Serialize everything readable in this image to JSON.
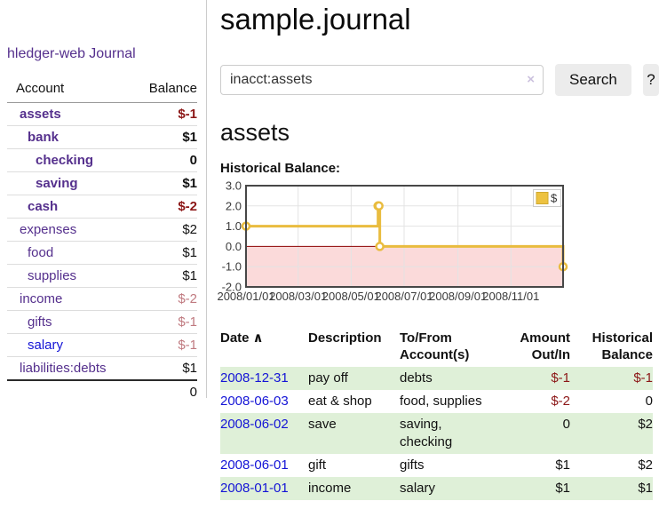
{
  "sidebar": {
    "brand": "hledger-web",
    "nav_journal": "Journal",
    "accounts_table": {
      "account_header": "Account",
      "balance_header": "Balance",
      "rows": [
        {
          "name": "assets",
          "balance": "$-1",
          "indent": 1,
          "bold": true,
          "amount_class": "neg-strong"
        },
        {
          "name": "bank",
          "balance": "$1",
          "indent": 2,
          "bold": true,
          "amount_class": ""
        },
        {
          "name": "checking",
          "balance": "0",
          "indent": 3,
          "bold": true,
          "amount_class": ""
        },
        {
          "name": "saving",
          "balance": "$1",
          "indent": 3,
          "bold": true,
          "amount_class": ""
        },
        {
          "name": "cash",
          "balance": "$-2",
          "indent": 2,
          "bold": true,
          "amount_class": "neg-strong"
        },
        {
          "name": "expenses",
          "balance": "$2",
          "indent": 1,
          "bold": false,
          "amount_class": ""
        },
        {
          "name": "food",
          "balance": "$1",
          "indent": 2,
          "bold": false,
          "amount_class": ""
        },
        {
          "name": "supplies",
          "balance": "$1",
          "indent": 2,
          "bold": false,
          "amount_class": ""
        },
        {
          "name": "income",
          "balance": "$-2",
          "indent": 1,
          "bold": false,
          "amount_class": "neg-soft"
        },
        {
          "name": "gifts",
          "balance": "$-1",
          "indent": 2,
          "bold": false,
          "amount_class": "neg-soft"
        },
        {
          "name": "salary",
          "balance": "$-1",
          "indent": 2,
          "bold": false,
          "amount_class": "neg-soft",
          "link": "blue"
        },
        {
          "name": "liabilities:debts",
          "balance": "$1",
          "indent": 1,
          "bold": false,
          "amount_class": ""
        }
      ],
      "total": "0"
    }
  },
  "header": {
    "title": "sample.journal"
  },
  "search": {
    "value": "inacct:assets",
    "clear_label": "×",
    "button_label": "Search",
    "help_label": "?"
  },
  "account_page": {
    "title": "assets",
    "chart_label": "Historical Balance:"
  },
  "chart_data": {
    "type": "line",
    "title": "Historical Balance",
    "step": true,
    "series": [
      {
        "name": "$",
        "points": [
          {
            "date": "2008-01-01",
            "day": 0,
            "value": 1
          },
          {
            "date": "2008-06-01",
            "day": 152,
            "value": 2
          },
          {
            "date": "2008-06-02",
            "day": 153,
            "value": 2
          },
          {
            "date": "2008-06-03",
            "day": 154,
            "value": 0
          },
          {
            "date": "2008-12-31",
            "day": 365,
            "value": -1
          }
        ]
      }
    ],
    "x_ticks": [
      {
        "label": "2008/01/01",
        "day": 0
      },
      {
        "label": "2008/03/01",
        "day": 60
      },
      {
        "label": "2008/05/01",
        "day": 121
      },
      {
        "label": "2008/07/01",
        "day": 182
      },
      {
        "label": "2008/09/01",
        "day": 244
      },
      {
        "label": "2008/11/01",
        "day": 305
      }
    ],
    "y_ticks": [
      {
        "label": "3.0",
        "value": 3
      },
      {
        "label": "2.0",
        "value": 2
      },
      {
        "label": "1.0",
        "value": 1
      },
      {
        "label": "0.0",
        "value": 0
      },
      {
        "label": "-1.0",
        "value": -1
      },
      {
        "label": "-2.0",
        "value": -2
      }
    ],
    "ylim": [
      -2,
      3
    ],
    "xlim_days": [
      0,
      365
    ],
    "grid": true,
    "legend": {
      "label": "$",
      "position": "top-right"
    },
    "colors": {
      "line": "#e9bc3f",
      "marker_fill": "#ffffff",
      "negative_region": "#fbdada",
      "zero_line": "#8b0000",
      "grid_line": "#e3e3e3",
      "plot_border": "#474747",
      "legend_swatch": "#edc240",
      "legend_swatch_border": "#d0a92f",
      "tick_text": "#3a3a3a"
    }
  },
  "register": {
    "headers": {
      "date": "Date",
      "date_sort": "∧",
      "description": "Description",
      "tofrom_line1": "To/From",
      "tofrom_line2": "Account(s)",
      "amount_line1": "Amount",
      "amount_line2": "Out/In",
      "balance_line1": "Historical",
      "balance_line2": "Balance"
    },
    "rows": [
      {
        "date": "2008-12-31",
        "description": "pay off",
        "accounts": "debts",
        "amount": "$-1",
        "amount_neg": true,
        "balance": "$-1",
        "balance_neg": true,
        "striped": true
      },
      {
        "date": "2008-06-03",
        "description": "eat & shop",
        "accounts": "food, supplies",
        "amount": "$-2",
        "amount_neg": true,
        "balance": "0",
        "balance_neg": false,
        "striped": false
      },
      {
        "date": "2008-06-02",
        "description": "save",
        "accounts": "saving, checking",
        "amount": "0",
        "amount_neg": false,
        "balance": "$2",
        "balance_neg": false,
        "striped": true
      },
      {
        "date": "2008-06-01",
        "description": "gift",
        "accounts": "gifts",
        "amount": "$1",
        "amount_neg": false,
        "balance": "$2",
        "balance_neg": false,
        "striped": false
      },
      {
        "date": "2008-01-01",
        "description": "income",
        "accounts": "salary",
        "amount": "$1",
        "amount_neg": false,
        "balance": "$1",
        "balance_neg": false,
        "striped": true
      }
    ]
  },
  "colors": {
    "link_purple": "#55308d",
    "link_blue": "#1414d6",
    "negative_strong": "#8c1717",
    "negative_soft": "#c07a80",
    "stripe_green": "#dff0d8",
    "button_gray": "#ececec"
  }
}
